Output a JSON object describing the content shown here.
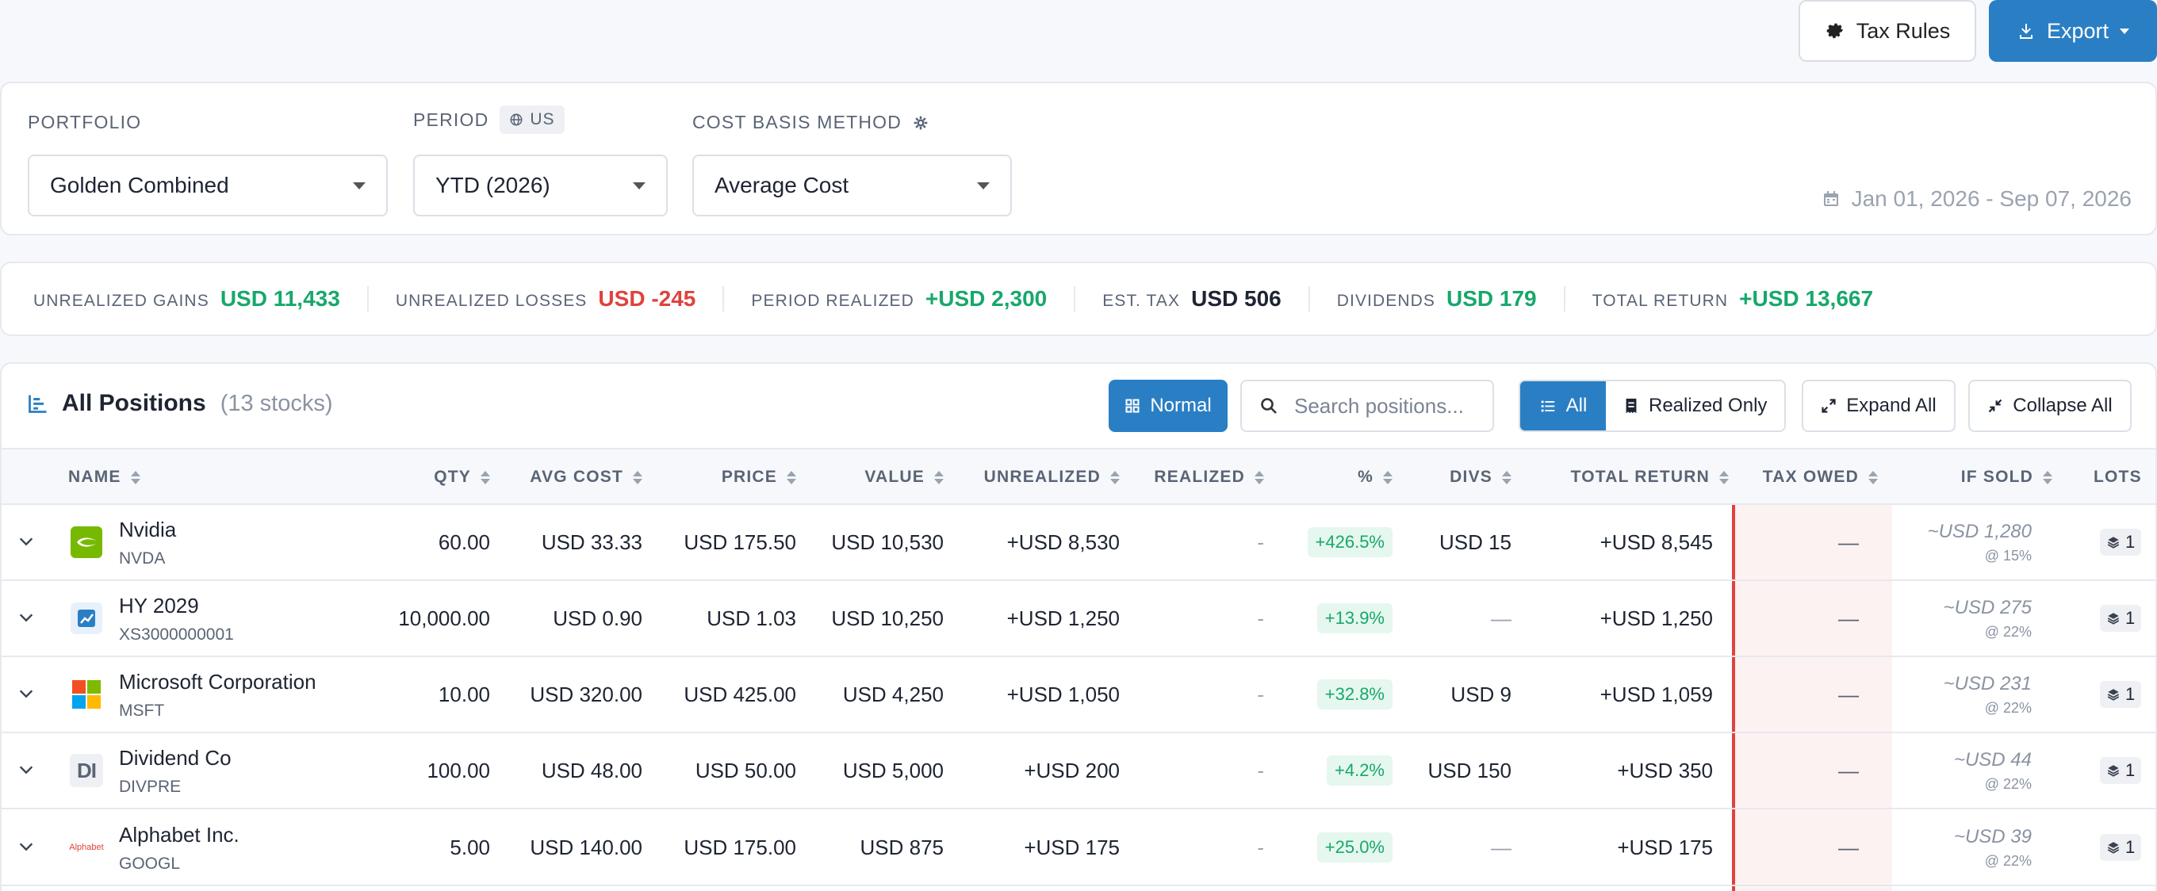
{
  "toolbar": {
    "tax_rules_label": "Tax Rules",
    "export_label": "Export"
  },
  "filters": {
    "portfolio_label": "PORTFOLIO",
    "portfolio_value": "Golden Combined",
    "period_label": "PERIOD",
    "region_label": "US",
    "period_value": "YTD (2026)",
    "cost_basis_label": "COST BASIS METHOD",
    "cost_basis_value": "Average Cost",
    "date_range": "Jan 01, 2026 - Sep 07, 2026"
  },
  "summary": [
    {
      "label": "UNREALIZED GAINS",
      "value": "USD 11,433",
      "tone": "green"
    },
    {
      "label": "UNREALIZED LOSSES",
      "value": "USD -245",
      "tone": "red"
    },
    {
      "label": "PERIOD REALIZED",
      "value": "+USD 2,300",
      "tone": "green"
    },
    {
      "label": "EST. TAX",
      "value": "USD 506",
      "tone": "dark"
    },
    {
      "label": "DIVIDENDS",
      "value": "USD 179",
      "tone": "green"
    },
    {
      "label": "TOTAL RETURN",
      "value": "+USD 13,667",
      "tone": "green"
    }
  ],
  "positions": {
    "title": "All Positions",
    "count": "(13 stocks)",
    "normal_label": "Normal",
    "search_placeholder": "Search positions...",
    "filter_all": "All",
    "filter_realized": "Realized Only",
    "expand_all": "Expand All",
    "collapse_all": "Collapse All",
    "columns": {
      "name": "NAME",
      "qty": "QTY",
      "avg_cost": "AVG COST",
      "price": "PRICE",
      "value": "VALUE",
      "unrealized": "UNREALIZED",
      "realized": "REALIZED",
      "pct": "%",
      "divs": "DIVS",
      "total_return": "TOTAL RETURN",
      "tax_owed": "TAX OWED",
      "if_sold": "IF SOLD",
      "lots": "LOTS"
    },
    "rows": [
      {
        "name": "Nvidia",
        "ticker": "NVDA",
        "logo": "nvidia-logo",
        "qty": "60.00",
        "avg_cost": "USD 33.33",
        "price": "USD 175.50",
        "value": "USD 10,530",
        "unrealized": "+USD 8,530",
        "realized": "-",
        "pct": "+426.5%",
        "divs": "USD 15",
        "total_return": "+USD 8,545",
        "tax_owed": "—",
        "if_sold": "~USD 1,280",
        "if_sold_rate": "@ 15%",
        "lots": "1"
      },
      {
        "name": "HY 2029",
        "ticker": "XS3000000001",
        "logo": "bond-chart-logo",
        "qty": "10,000.00",
        "avg_cost": "USD 0.90",
        "price": "USD 1.03",
        "value": "USD 10,250",
        "unrealized": "+USD 1,250",
        "realized": "-",
        "pct": "+13.9%",
        "divs": "—",
        "total_return": "+USD 1,250",
        "tax_owed": "—",
        "if_sold": "~USD 275",
        "if_sold_rate": "@ 22%",
        "lots": "1"
      },
      {
        "name": "Microsoft Corporation",
        "ticker": "MSFT",
        "logo": "microsoft-logo",
        "qty": "10.00",
        "avg_cost": "USD 320.00",
        "price": "USD 425.00",
        "value": "USD 4,250",
        "unrealized": "+USD 1,050",
        "realized": "-",
        "pct": "+32.8%",
        "divs": "USD 9",
        "total_return": "+USD 1,059",
        "tax_owed": "—",
        "if_sold": "~USD 231",
        "if_sold_rate": "@ 22%",
        "lots": "1"
      },
      {
        "name": "Dividend Co",
        "ticker": "DIVPRE",
        "logo": "initials-logo",
        "initials": "DI",
        "qty": "100.00",
        "avg_cost": "USD 48.00",
        "price": "USD 50.00",
        "value": "USD 5,000",
        "unrealized": "+USD 200",
        "realized": "-",
        "pct": "+4.2%",
        "divs": "USD 150",
        "total_return": "+USD 350",
        "tax_owed": "—",
        "if_sold": "~USD 44",
        "if_sold_rate": "@ 22%",
        "lots": "1"
      },
      {
        "name": "Alphabet Inc.",
        "ticker": "GOOGL",
        "logo": "alphabet-logo",
        "logo_text": "Alphabet",
        "qty": "5.00",
        "avg_cost": "USD 140.00",
        "price": "USD 175.00",
        "value": "USD 875",
        "unrealized": "+USD 175",
        "realized": "-",
        "pct": "+25.0%",
        "divs": "—",
        "total_return": "+USD 175",
        "tax_owed": "—",
        "if_sold": "~USD 39",
        "if_sold_rate": "@ 22%",
        "lots": "1"
      }
    ]
  }
}
